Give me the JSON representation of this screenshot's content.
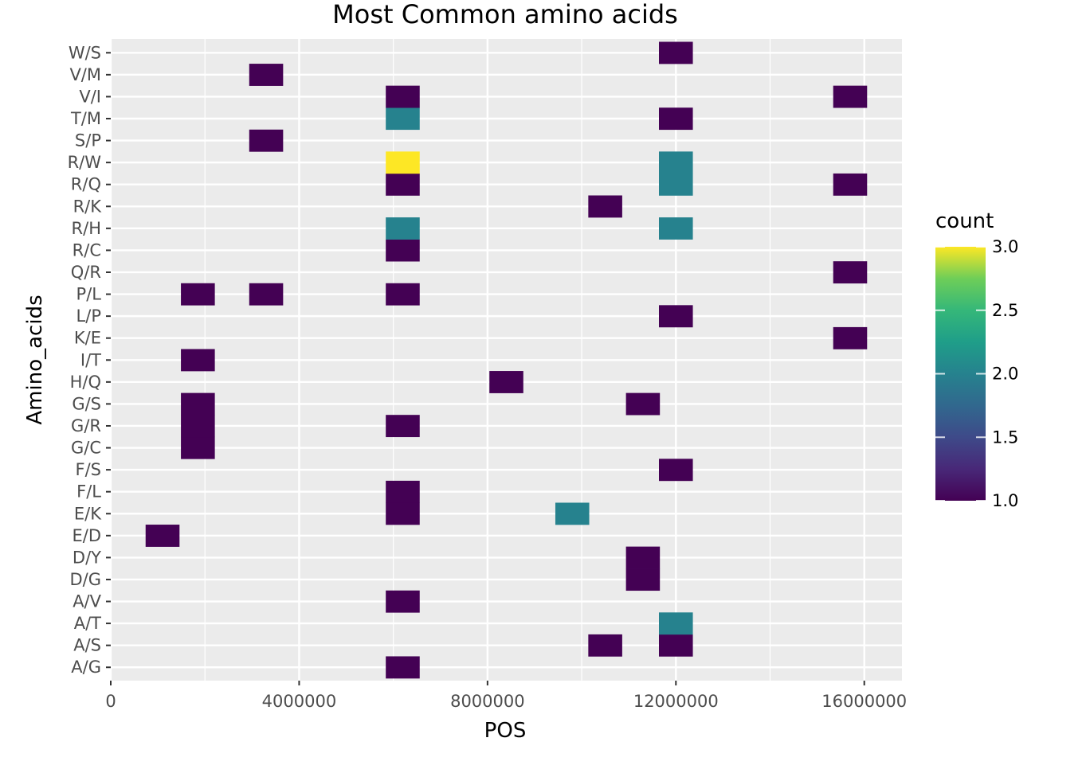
{
  "chart_data": {
    "type": "heatmap",
    "title": "Most Common amino acids",
    "xlabel": "POS",
    "ylabel": "Amino_acids",
    "xlim": [
      0,
      16800000
    ],
    "x_ticks": [
      0,
      4000000,
      8000000,
      12000000,
      16000000
    ],
    "x_tick_labels": [
      "0",
      "4000000",
      "8000000",
      "12000000",
      "16000000"
    ],
    "bin_width": 720000,
    "categories": [
      "A/G",
      "A/S",
      "A/T",
      "A/V",
      "D/G",
      "D/Y",
      "E/D",
      "E/K",
      "F/L",
      "F/S",
      "G/C",
      "G/R",
      "G/S",
      "H/Q",
      "I/T",
      "K/E",
      "L/P",
      "P/L",
      "Q/R",
      "R/C",
      "R/H",
      "R/K",
      "R/Q",
      "R/W",
      "S/P",
      "T/M",
      "V/I",
      "V/M",
      "W/S"
    ],
    "legend": {
      "title": "count",
      "min": 1.0,
      "max": 3.0,
      "ticks": [
        1.0,
        1.5,
        2.0,
        2.5,
        3.0
      ],
      "tick_labels": [
        "1.0",
        "1.5",
        "2.0",
        "2.5",
        "3.0"
      ],
      "placement": "right"
    },
    "colorscale": [
      "#440154",
      "#3b528b",
      "#21918c",
      "#5ec962",
      "#fde725"
    ],
    "grid": true,
    "cells": [
      {
        "x": 6200000,
        "y": "A/G",
        "count": 1
      },
      {
        "x": 10500000,
        "y": "A/S",
        "count": 1
      },
      {
        "x": 12000000,
        "y": "A/S",
        "count": 1
      },
      {
        "x": 12000000,
        "y": "A/T",
        "count": 2
      },
      {
        "x": 6200000,
        "y": "A/V",
        "count": 1
      },
      {
        "x": 11300000,
        "y": "D/G",
        "count": 1
      },
      {
        "x": 11300000,
        "y": "D/Y",
        "count": 1
      },
      {
        "x": 1100000,
        "y": "E/D",
        "count": 1
      },
      {
        "x": 6200000,
        "y": "E/K",
        "count": 1
      },
      {
        "x": 9800000,
        "y": "E/K",
        "count": 2
      },
      {
        "x": 6200000,
        "y": "F/L",
        "count": 1
      },
      {
        "x": 12000000,
        "y": "F/S",
        "count": 1
      },
      {
        "x": 1850000,
        "y": "G/C",
        "count": 1
      },
      {
        "x": 1850000,
        "y": "G/R",
        "count": 1
      },
      {
        "x": 6200000,
        "y": "G/R",
        "count": 1
      },
      {
        "x": 1850000,
        "y": "G/S",
        "count": 1
      },
      {
        "x": 11300000,
        "y": "G/S",
        "count": 1
      },
      {
        "x": 8400000,
        "y": "H/Q",
        "count": 1
      },
      {
        "x": 1850000,
        "y": "I/T",
        "count": 1
      },
      {
        "x": 15700000,
        "y": "K/E",
        "count": 1
      },
      {
        "x": 12000000,
        "y": "L/P",
        "count": 1
      },
      {
        "x": 1850000,
        "y": "P/L",
        "count": 1
      },
      {
        "x": 3300000,
        "y": "P/L",
        "count": 1
      },
      {
        "x": 6200000,
        "y": "P/L",
        "count": 1
      },
      {
        "x": 15700000,
        "y": "Q/R",
        "count": 1
      },
      {
        "x": 6200000,
        "y": "R/C",
        "count": 1
      },
      {
        "x": 6200000,
        "y": "R/H",
        "count": 2
      },
      {
        "x": 12000000,
        "y": "R/H",
        "count": 2
      },
      {
        "x": 10500000,
        "y": "R/K",
        "count": 1
      },
      {
        "x": 6200000,
        "y": "R/Q",
        "count": 1
      },
      {
        "x": 12000000,
        "y": "R/Q",
        "count": 2
      },
      {
        "x": 15700000,
        "y": "R/Q",
        "count": 1
      },
      {
        "x": 6200000,
        "y": "R/W",
        "count": 3
      },
      {
        "x": 12000000,
        "y": "R/W",
        "count": 2
      },
      {
        "x": 3300000,
        "y": "S/P",
        "count": 1
      },
      {
        "x": 6200000,
        "y": "T/M",
        "count": 2
      },
      {
        "x": 12000000,
        "y": "T/M",
        "count": 1
      },
      {
        "x": 6200000,
        "y": "V/I",
        "count": 1
      },
      {
        "x": 15700000,
        "y": "V/I",
        "count": 1
      },
      {
        "x": 3300000,
        "y": "V/M",
        "count": 1
      },
      {
        "x": 12000000,
        "y": "W/S",
        "count": 1
      }
    ]
  }
}
